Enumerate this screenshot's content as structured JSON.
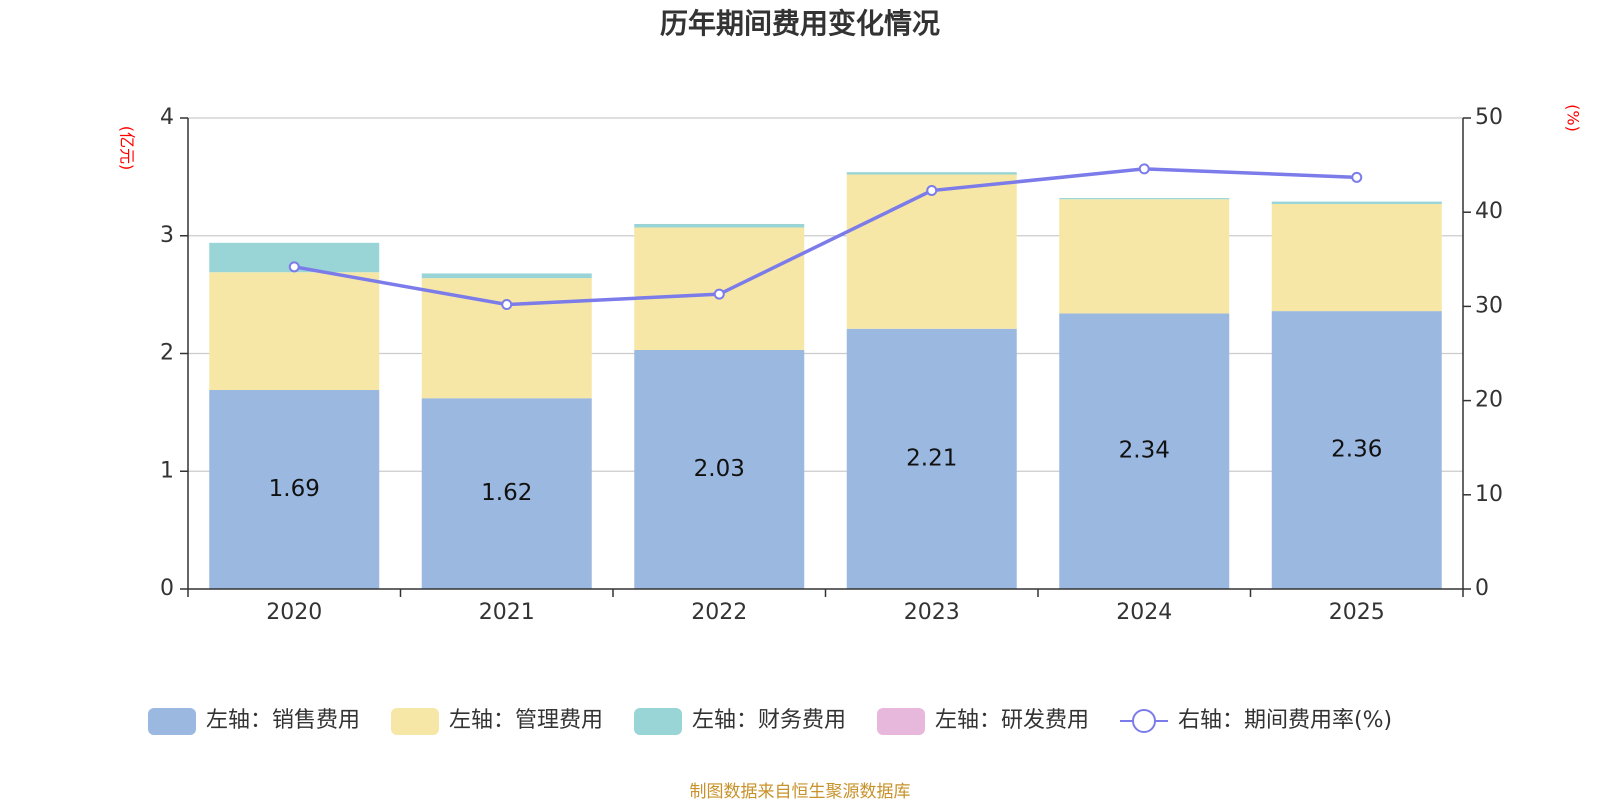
{
  "chart_data": {
    "type": "bar",
    "stacked": true,
    "title": "历年期间费用变化情况",
    "categories": [
      "2020",
      "2021",
      "2022",
      "2023",
      "2024",
      "2025"
    ],
    "left_axis": {
      "unit_label": "(亿元)",
      "ylim": [
        0,
        4
      ],
      "ticks": [
        "0",
        "1",
        "2",
        "3",
        "4"
      ]
    },
    "right_axis": {
      "unit_label": "(%)",
      "ylim": [
        0,
        50
      ],
      "ticks": [
        "0",
        "10",
        "20",
        "30",
        "40",
        "50"
      ]
    },
    "series": [
      {
        "name": "左轴：销售费用",
        "axis": "left",
        "type": "bar",
        "color": "#9bb8e1",
        "values": [
          1.69,
          1.62,
          2.03,
          2.21,
          2.34,
          2.36
        ],
        "labels": [
          "1.69",
          "1.62",
          "2.03",
          "2.21",
          "2.34",
          "2.36"
        ]
      },
      {
        "name": "左轴：管理费用",
        "axis": "left",
        "type": "bar",
        "color": "#f7e7a6",
        "values": [
          1.0,
          1.02,
          1.04,
          1.31,
          0.97,
          0.91
        ]
      },
      {
        "name": "左轴：财务费用",
        "axis": "left",
        "type": "bar",
        "color": "#99d5d6",
        "values": [
          0.25,
          0.04,
          0.03,
          0.02,
          0.01,
          0.02
        ]
      },
      {
        "name": "左轴：研发费用",
        "axis": "left",
        "type": "bar",
        "color": "#e8b8dc",
        "values": [
          0,
          0,
          0,
          0,
          0,
          0
        ]
      },
      {
        "name": "右轴：期间费用率(%)",
        "axis": "right",
        "type": "line",
        "color": "#7b7bea",
        "values": [
          34.2,
          30.2,
          31.3,
          42.3,
          44.6,
          43.7
        ]
      }
    ],
    "source": "制图数据来自恒生聚源数据库"
  }
}
